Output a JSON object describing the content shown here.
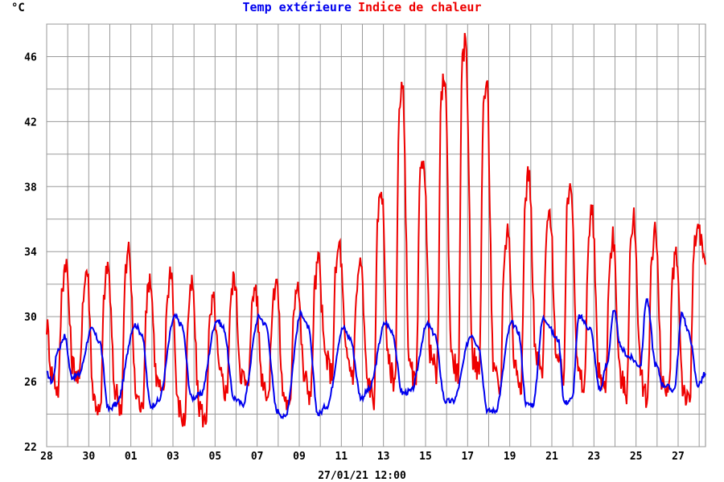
{
  "chart_data": {
    "type": "line",
    "unit_label": "°C",
    "footer_label": "27/01/21 12:00",
    "x_tick_labels": [
      "28",
      "30",
      "01",
      "03",
      "05",
      "07",
      "09",
      "11",
      "13",
      "15",
      "17",
      "19",
      "21",
      "23",
      "25",
      "27"
    ],
    "y_ticks": [
      22,
      26,
      30,
      34,
      38,
      42,
      46
    ],
    "ylim": [
      22,
      48
    ],
    "xlim": [
      0,
      31.3
    ],
    "grid": true,
    "series": [
      {
        "name": "Temp extérieure",
        "color": "#0000ee",
        "x": [
          0,
          0.25,
          0.55,
          0.85,
          1.2,
          1.5,
          2.15,
          2.5,
          2.95,
          3.3,
          4.2,
          4.5,
          4.95,
          5.3,
          6.1,
          6.4,
          6.9,
          7.3,
          8.1,
          8.4,
          8.9,
          9.3,
          10.1,
          10.4,
          10.95,
          11.3,
          12.1,
          12.4,
          12.9,
          13.3,
          14.1,
          14.4,
          14.95,
          15.3,
          16.1,
          16.4,
          16.9,
          17.3,
          18.1,
          18.4,
          18.95,
          19.3,
          20.2,
          20.5,
          20.95,
          21.3,
          22.1,
          22.4,
          22.8,
          23.1,
          23.6,
          24.3,
          24.6,
          24.95,
          25.3,
          25.8,
          26.3,
          26.6,
          26.95,
          27.3,
          27.7,
          28.2,
          28.5,
          28.95,
          29.3,
          29.8,
          30.2,
          30.5,
          30.95,
          31.3
        ],
        "y": [
          26.5,
          26.0,
          28.0,
          28.8,
          26.3,
          26.4,
          29.2,
          28.5,
          24.3,
          24.6,
          29.5,
          29.0,
          24.5,
          24.8,
          30.0,
          29.5,
          25.0,
          25.2,
          29.8,
          29.3,
          25.0,
          24.6,
          30.0,
          29.5,
          24.2,
          23.8,
          30.2,
          29.4,
          24.0,
          24.5,
          29.3,
          28.7,
          25.0,
          25.5,
          29.6,
          29.1,
          25.3,
          25.4,
          29.5,
          29.0,
          24.8,
          24.8,
          28.9,
          28.2,
          24.2,
          24.2,
          29.6,
          29.1,
          24.6,
          24.6,
          29.9,
          28.6,
          24.7,
          24.9,
          30.0,
          29.3,
          25.5,
          27.0,
          30.3,
          28.0,
          27.5,
          27.0,
          31.1,
          27.0,
          25.8,
          25.5,
          30.2,
          29.0,
          25.8,
          26.5
        ],
        "x2": [],
        "y2": []
      },
      {
        "name": "Indice de chaleur",
        "color": "#ee0000",
        "x": [],
        "y": []
      }
    ]
  },
  "title_parts": {
    "blue": "Temp extérieure",
    "red": "Indice de chaleur"
  }
}
